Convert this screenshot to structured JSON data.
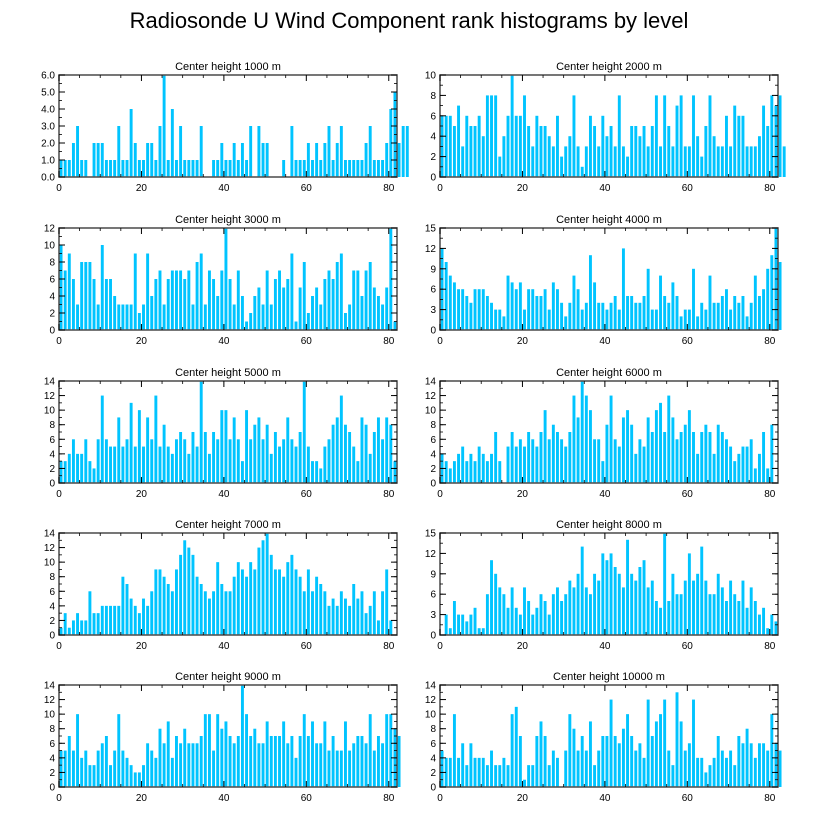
{
  "title": "Radiosonde U Wind Component rank histograms by level",
  "colors": {
    "bar": "#00c4ff",
    "axis": "#000000",
    "frame": "#555555"
  },
  "chart_data": [
    {
      "type": "bar",
      "title": "Center height 1000 m",
      "xlim": [
        0,
        82
      ],
      "ylim": [
        0,
        6.0
      ],
      "xticks": [
        0,
        20,
        40,
        60,
        80
      ],
      "yticks": [
        0,
        1,
        2,
        3,
        4,
        5,
        6
      ],
      "ytick_labels": [
        "0.0",
        "1.0",
        "2.0",
        "3.0",
        "4.0",
        "5.0",
        "6.0"
      ],
      "values": [
        1,
        1,
        1,
        2,
        3,
        1,
        1,
        0,
        2,
        2,
        2,
        1,
        1,
        1,
        3,
        1,
        1,
        4,
        2,
        1,
        1,
        2,
        2,
        1,
        3,
        6,
        1,
        4,
        1,
        3,
        1,
        1,
        1,
        1,
        3,
        0,
        0,
        1,
        1,
        2,
        1,
        1,
        2,
        1,
        2,
        1,
        3,
        0,
        3,
        2,
        2,
        0,
        0,
        0,
        1,
        0,
        3,
        1,
        1,
        1,
        2,
        1,
        2,
        1,
        2,
        3,
        1,
        2,
        3,
        1,
        1,
        1,
        1,
        1,
        2,
        3,
        1,
        1,
        1,
        2,
        4,
        5,
        2,
        3,
        3
      ]
    },
    {
      "type": "bar",
      "title": "Center height 2000 m",
      "xlim": [
        0,
        82
      ],
      "ylim": [
        0,
        10
      ],
      "xticks": [
        0,
        20,
        40,
        60,
        80
      ],
      "yticks": [
        0,
        2,
        4,
        6,
        8,
        10
      ],
      "ytick_labels": [
        "0",
        "2",
        "4",
        "6",
        "8",
        "10"
      ],
      "values": [
        6,
        6,
        6,
        5,
        7,
        3,
        6,
        5,
        5,
        6,
        4,
        8,
        8,
        8,
        2,
        4,
        6,
        10,
        6,
        6,
        8,
        5,
        3,
        6,
        5,
        5,
        4,
        3,
        6,
        2,
        3,
        4,
        8,
        3,
        1,
        3,
        6,
        5,
        3,
        6,
        4,
        5,
        3,
        8,
        3,
        2,
        5,
        5,
        4,
        5,
        3,
        5,
        8,
        3,
        8,
        5,
        3,
        7,
        8,
        3,
        3,
        8,
        4,
        2,
        5,
        8,
        4,
        3,
        3,
        6,
        3,
        7,
        6,
        6,
        3,
        3,
        3,
        4,
        7,
        5,
        8,
        7,
        8,
        3
      ]
    },
    {
      "type": "bar",
      "title": "Center height 3000 m",
      "xlim": [
        0,
        82
      ],
      "ylim": [
        0,
        12
      ],
      "xticks": [
        0,
        20,
        40,
        60,
        80
      ],
      "yticks": [
        0,
        2,
        4,
        6,
        8,
        10,
        12
      ],
      "ytick_labels": [
        "0",
        "2",
        "4",
        "6",
        "8",
        "10",
        "12"
      ],
      "values": [
        10,
        7,
        9,
        6,
        3,
        8,
        8,
        8,
        6,
        3,
        10,
        6,
        6,
        4,
        3,
        3,
        3,
        3,
        9,
        2,
        3,
        9,
        4,
        6,
        7,
        3,
        6,
        7,
        7,
        7,
        6,
        7,
        3,
        8,
        9,
        3,
        7,
        6,
        4,
        7,
        12,
        6,
        3,
        7,
        4,
        1,
        2,
        4,
        5,
        3,
        7,
        3,
        6,
        7,
        5,
        6,
        9,
        1,
        5,
        8,
        2,
        4,
        5,
        3,
        6,
        7,
        6,
        8,
        9,
        2,
        3,
        7,
        7,
        4,
        7,
        8,
        5,
        4,
        3,
        5,
        12,
        1
      ]
    },
    {
      "type": "bar",
      "title": "Center height 4000 m",
      "xlim": [
        0,
        82
      ],
      "ylim": [
        0,
        15
      ],
      "xticks": [
        0,
        20,
        40,
        60,
        80
      ],
      "yticks": [
        0,
        3,
        6,
        9,
        12,
        15
      ],
      "ytick_labels": [
        "0",
        "3",
        "6",
        "9",
        "12",
        "15"
      ],
      "values": [
        12,
        10,
        8,
        7,
        6,
        6,
        5,
        4,
        6,
        6,
        6,
        5,
        4,
        3,
        3,
        2,
        8,
        7,
        6,
        7,
        3,
        6,
        6,
        5,
        5,
        6,
        3,
        7,
        6,
        4,
        2,
        4,
        8,
        6,
        3,
        4,
        11,
        7,
        4,
        4,
        3,
        4,
        5,
        3,
        12,
        5,
        5,
        4,
        4,
        5,
        9,
        3,
        3,
        8,
        5,
        4,
        7,
        5,
        2,
        3,
        3,
        9,
        2,
        4,
        3,
        8,
        4,
        4,
        5,
        6,
        3,
        5,
        4,
        5,
        2,
        4,
        8,
        5,
        6,
        9,
        11,
        15,
        10
      ]
    },
    {
      "type": "bar",
      "title": "Center height 5000 m",
      "xlim": [
        0,
        82
      ],
      "ylim": [
        0,
        14
      ],
      "xticks": [
        0,
        20,
        40,
        60,
        80
      ],
      "yticks": [
        0,
        2,
        4,
        6,
        8,
        10,
        12,
        14
      ],
      "ytick_labels": [
        "0",
        "2",
        "4",
        "6",
        "8",
        "10",
        "12",
        "14"
      ],
      "values": [
        3,
        3,
        4,
        6,
        4,
        4,
        6,
        3,
        2,
        6,
        12,
        6,
        5,
        5,
        9,
        5,
        6,
        11,
        5,
        10,
        5,
        9,
        6,
        12,
        5,
        8,
        5,
        4,
        6,
        7,
        6,
        4,
        7,
        5,
        14,
        7,
        4,
        7,
        6,
        10,
        10,
        6,
        9,
        6,
        3,
        10,
        6,
        8,
        9,
        6,
        8,
        4,
        7,
        5,
        6,
        9,
        6,
        5,
        7,
        14,
        5,
        3,
        3,
        2,
        5,
        6,
        8,
        9,
        12,
        8,
        7,
        5,
        3,
        9,
        8,
        4,
        7,
        9,
        6,
        9,
        8,
        3
      ]
    },
    {
      "type": "bar",
      "title": "Center height 6000 m",
      "xlim": [
        0,
        82
      ],
      "ylim": [
        0,
        14
      ],
      "xticks": [
        0,
        20,
        40,
        60,
        80
      ],
      "yticks": [
        0,
        2,
        4,
        6,
        8,
        10,
        12,
        14
      ],
      "ytick_labels": [
        "0",
        "2",
        "4",
        "6",
        "8",
        "10",
        "12",
        "14"
      ],
      "values": [
        4,
        3,
        2,
        3,
        4,
        5,
        3,
        4,
        3,
        5,
        4,
        3,
        4,
        7,
        3,
        0,
        5,
        7,
        5,
        6,
        5,
        7,
        6,
        5,
        7,
        10,
        6,
        8,
        7,
        6,
        5,
        7,
        12,
        9,
        14,
        12,
        10,
        6,
        6,
        3,
        8,
        12,
        6,
        5,
        9,
        10,
        8,
        4,
        6,
        5,
        9,
        7,
        10,
        11,
        7,
        12,
        9,
        6,
        7,
        8,
        10,
        7,
        4,
        7,
        8,
        7,
        4,
        8,
        7,
        6,
        5,
        3,
        4,
        5,
        5,
        6,
        2,
        4,
        7,
        2,
        8
      ]
    },
    {
      "type": "bar",
      "title": "Center height 7000 m",
      "xlim": [
        0,
        82
      ],
      "ylim": [
        0,
        14
      ],
      "xticks": [
        0,
        20,
        40,
        60,
        80
      ],
      "yticks": [
        0,
        2,
        4,
        6,
        8,
        10,
        12,
        14
      ],
      "ytick_labels": [
        "0",
        "2",
        "4",
        "6",
        "8",
        "10",
        "12",
        "14"
      ],
      "values": [
        1,
        3,
        1,
        2,
        3,
        2,
        2,
        6,
        3,
        3,
        4,
        4,
        4,
        4,
        4,
        8,
        7,
        5,
        4,
        3,
        5,
        4,
        6,
        9,
        9,
        8,
        7,
        6,
        9,
        11,
        13,
        12,
        11,
        8,
        7,
        6,
        5,
        6,
        10,
        7,
        6,
        6,
        8,
        10,
        9,
        8,
        10,
        9,
        12,
        13,
        14,
        11,
        9,
        9,
        8,
        10,
        11,
        9,
        8,
        6,
        9,
        6,
        8,
        7,
        6,
        4,
        5,
        4,
        6,
        5,
        4,
        7,
        5,
        6,
        3,
        4,
        6,
        2,
        6,
        9,
        2
      ]
    },
    {
      "type": "bar",
      "title": "Center height 8000 m",
      "xlim": [
        0,
        82
      ],
      "ylim": [
        0,
        15
      ],
      "xticks": [
        0,
        20,
        40,
        60,
        80
      ],
      "yticks": [
        0,
        3,
        6,
        9,
        12,
        15
      ],
      "ytick_labels": [
        "0",
        "3",
        "6",
        "9",
        "12",
        "15"
      ],
      "values": [
        0,
        3,
        1,
        5,
        3,
        3,
        2,
        3,
        4,
        1,
        1,
        6,
        11,
        9,
        7,
        6,
        4,
        7,
        4,
        3,
        7,
        5,
        3,
        4,
        6,
        5,
        3,
        6,
        7,
        5,
        6,
        8,
        7,
        9,
        13,
        7,
        6,
        9,
        8,
        12,
        11,
        12,
        10,
        9,
        7,
        14,
        9,
        8,
        10,
        11,
        7,
        8,
        5,
        4,
        15,
        5,
        9,
        6,
        6,
        8,
        12,
        8,
        9,
        13,
        8,
        6,
        6,
        9,
        7,
        5,
        8,
        6,
        5,
        8,
        4,
        7,
        5,
        3,
        4,
        1,
        3,
        2
      ]
    },
    {
      "type": "bar",
      "title": "Center height 9000 m",
      "xlim": [
        0,
        82
      ],
      "ylim": [
        0,
        14
      ],
      "xticks": [
        0,
        20,
        40,
        60,
        80
      ],
      "yticks": [
        0,
        2,
        4,
        6,
        8,
        10,
        12,
        14
      ],
      "ytick_labels": [
        "0",
        "2",
        "4",
        "6",
        "8",
        "10",
        "12",
        "14"
      ],
      "values": [
        5,
        5,
        7,
        5,
        10,
        4,
        5,
        3,
        3,
        5,
        6,
        7,
        3,
        5,
        10,
        5,
        4,
        3,
        2,
        2,
        3,
        6,
        5,
        4,
        8,
        6,
        9,
        4,
        7,
        6,
        8,
        6,
        6,
        6,
        7,
        10,
        10,
        5,
        10,
        8,
        9,
        7,
        6,
        7,
        14,
        10,
        7,
        8,
        6,
        6,
        9,
        7,
        7,
        7,
        9,
        6,
        7,
        4,
        7,
        10,
        7,
        9,
        6,
        6,
        9,
        5,
        7,
        5,
        5,
        9,
        5,
        6,
        7,
        7,
        6,
        10,
        5,
        7,
        6,
        10,
        10,
        8,
        7
      ]
    },
    {
      "type": "bar",
      "title": "Center height 10000 m",
      "xlim": [
        0,
        82
      ],
      "ylim": [
        0,
        14
      ],
      "xticks": [
        0,
        20,
        40,
        60,
        80
      ],
      "yticks": [
        0,
        2,
        4,
        6,
        8,
        10,
        12,
        14
      ],
      "ytick_labels": [
        "0",
        "2",
        "4",
        "6",
        "8",
        "10",
        "12",
        "14"
      ],
      "values": [
        5,
        4,
        4,
        10,
        4,
        6,
        3,
        6,
        4,
        4,
        4,
        3,
        5,
        3,
        3,
        4,
        3,
        10,
        11,
        7,
        1,
        3,
        3,
        7,
        9,
        7,
        3,
        5,
        4,
        0,
        5,
        10,
        8,
        5,
        7,
        5,
        9,
        3,
        5,
        7,
        7,
        12,
        7,
        6,
        8,
        10,
        7,
        5,
        6,
        4,
        12,
        7,
        9,
        10,
        12,
        5,
        3,
        13,
        9,
        5,
        6,
        12,
        4,
        4,
        2,
        3,
        4,
        7,
        5,
        4,
        5,
        3,
        7,
        6,
        8,
        6,
        4,
        6,
        6,
        5,
        10,
        6,
        5
      ]
    }
  ]
}
